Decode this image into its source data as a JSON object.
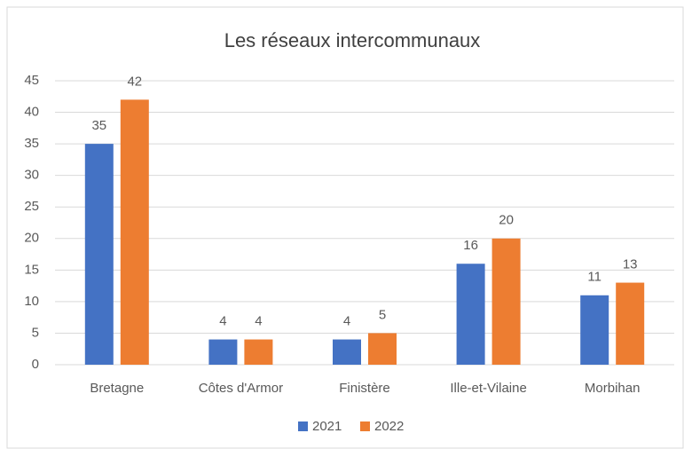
{
  "chart_data": {
    "type": "bar",
    "title": "Les réseaux intercommunaux",
    "categories": [
      "Bretagne",
      "Côtes d'Armor",
      "Finistère",
      "Ille-et-Vilaine",
      "Morbihan"
    ],
    "series": [
      {
        "name": "2021",
        "color": "#4472c4",
        "values": [
          35,
          4,
          4,
          16,
          11
        ]
      },
      {
        "name": "2022",
        "color": "#ed7d31",
        "values": [
          42,
          4,
          5,
          20,
          13
        ]
      }
    ],
    "ylim": [
      0,
      45
    ],
    "yticks": [
      0,
      5,
      10,
      15,
      20,
      25,
      30,
      35,
      40,
      45
    ],
    "grid": true,
    "legend": "bottom"
  }
}
